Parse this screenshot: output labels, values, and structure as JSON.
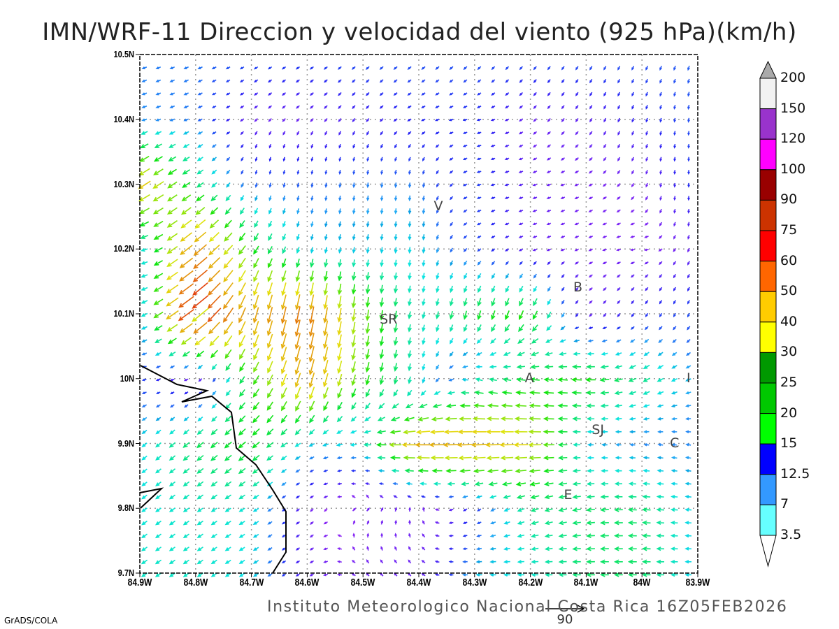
{
  "title": "IMN/WRF-11 Direccion y velocidad del viento (925 hPa)(km/h)",
  "footer": "Instituto Meteorologico Nacional Costa Rica 16Z05FEB2026",
  "credit": "GrADS/COLA",
  "reference_vector": {
    "label": "90",
    "speed": 90
  },
  "axes": {
    "lat_labels": [
      "10.5N",
      "10.4N",
      "10.3N",
      "10.2N",
      "10.1N",
      "10N",
      "9.9N",
      "9.8N",
      "9.7N"
    ],
    "lat_values": [
      10.5,
      10.4,
      10.3,
      10.2,
      10.1,
      10.0,
      9.9,
      9.8,
      9.7
    ],
    "lon_labels": [
      "84.9W",
      "84.8W",
      "84.7W",
      "84.6W",
      "84.5W",
      "84.4W",
      "84.3W",
      "84.2W",
      "84.1W",
      "84W",
      "83.9W"
    ],
    "lon_values": [
      -84.9,
      -84.8,
      -84.7,
      -84.6,
      -84.5,
      -84.4,
      -84.3,
      -84.2,
      -84.1,
      -84.0,
      -83.9
    ],
    "lat_range": [
      9.7,
      10.5
    ],
    "lon_range": [
      -84.9,
      -83.9
    ]
  },
  "cities": [
    {
      "label": "V",
      "lat": 10.265,
      "lon": -84.363
    },
    {
      "label": "B",
      "lat": 10.14,
      "lon": -84.113
    },
    {
      "label": "SR",
      "lat": 10.09,
      "lon": -84.46
    },
    {
      "label": "A",
      "lat": 10.0,
      "lon": -84.2
    },
    {
      "label": "I",
      "lat": 10.0,
      "lon": -83.91
    },
    {
      "label": "SJ",
      "lat": 9.92,
      "lon": -84.08
    },
    {
      "label": "C",
      "lat": 9.9,
      "lon": -83.94
    },
    {
      "label": "E",
      "lat": 9.82,
      "lon": -84.13
    }
  ],
  "colorbar": {
    "labels": [
      "200",
      "150",
      "120",
      "100",
      "90",
      "75",
      "60",
      "50",
      "40",
      "30",
      "25",
      "20",
      "15",
      "12.5",
      "7",
      "3.5"
    ],
    "colors": [
      "#f2f2f2",
      "#9933cc",
      "#ff00ff",
      "#990000",
      "#cc3300",
      "#ff0000",
      "#ff6600",
      "#ffcc00",
      "#ffff00",
      "#009900",
      "#00c800",
      "#00ff00",
      "#0000ff",
      "#3399ff",
      "#66ffff"
    ],
    "over_color": "#aaaaaa",
    "under_color": "#ffffff"
  },
  "wind_field": {
    "description_units": "km/h, u eastward / v northward, nodes every 0.1 deg",
    "lats": [
      10.5,
      10.4,
      10.3,
      10.2,
      10.1,
      10.0,
      9.9,
      9.8,
      9.7
    ],
    "lons": [
      -84.9,
      -84.8,
      -84.7,
      -84.6,
      -84.5,
      -84.4,
      -84.3,
      -84.2,
      -84.1,
      -84.0,
      -83.9
    ],
    "uv": [
      [
        [
          -9,
          -4
        ],
        [
          -9,
          -4
        ],
        [
          -8,
          -5
        ],
        [
          -7,
          -5
        ],
        [
          -7,
          -6
        ],
        [
          -7,
          -6
        ],
        [
          -6,
          -7
        ],
        [
          -6,
          -7
        ],
        [
          -5,
          -8
        ],
        [
          -4,
          -8
        ],
        [
          -3,
          -9
        ]
      ],
      [
        [
          -10,
          -3
        ],
        [
          -9,
          -4
        ],
        [
          -2,
          -2
        ],
        [
          -2,
          -2
        ],
        [
          -3,
          -4
        ],
        [
          -6,
          -3
        ],
        [
          -7,
          -2
        ],
        [
          -2,
          -2
        ],
        [
          -2,
          -3
        ],
        [
          -2,
          -6
        ],
        [
          -1,
          -9
        ]
      ],
      [
        [
          -28,
          -18
        ],
        [
          -15,
          -10
        ],
        [
          -2,
          -9
        ],
        [
          -1,
          -9
        ],
        [
          -1,
          -10
        ],
        [
          -1,
          -10
        ],
        [
          -8,
          -2
        ],
        [
          -3,
          -1
        ],
        [
          -2,
          -1
        ],
        [
          -1,
          -2
        ],
        [
          0,
          -8
        ]
      ],
      [
        [
          -12,
          -2
        ],
        [
          -30,
          -25
        ],
        [
          -12,
          -18
        ],
        [
          -3,
          -12
        ],
        [
          -2,
          -12
        ],
        [
          -1,
          -13
        ],
        [
          -7,
          -5
        ],
        [
          -3,
          -1
        ],
        [
          -2,
          -1
        ],
        [
          -2,
          0
        ],
        [
          -1,
          -3
        ]
      ],
      [
        [
          -10,
          -4
        ],
        [
          -40,
          -30
        ],
        [
          -10,
          -35
        ],
        [
          -8,
          -40
        ],
        [
          -3,
          -25
        ],
        [
          -3,
          -14
        ],
        [
          -5,
          -20
        ],
        [
          -10,
          -20
        ],
        [
          -2,
          -2
        ],
        [
          -4,
          -6
        ],
        [
          -4,
          -8
        ]
      ],
      [
        [
          -8,
          -2
        ],
        [
          -2,
          -1
        ],
        [
          -12,
          -18
        ],
        [
          -10,
          -35
        ],
        [
          -6,
          -22
        ],
        [
          -2,
          -14
        ],
        [
          -14,
          4
        ],
        [
          -20,
          2
        ],
        [
          -22,
          1
        ],
        [
          -15,
          -8
        ],
        [
          -10,
          -4
        ]
      ],
      [
        [
          -10,
          -8
        ],
        [
          -14,
          -12
        ],
        [
          -16,
          -14
        ],
        [
          -11,
          -6
        ],
        [
          -14,
          0
        ],
        [
          -36,
          0
        ],
        [
          -35,
          -1
        ],
        [
          -30,
          0
        ],
        [
          -12,
          0
        ],
        [
          -10,
          1
        ],
        [
          -10,
          2
        ]
      ],
      [
        [
          -11,
          -8
        ],
        [
          -12,
          -8
        ],
        [
          -12,
          -7
        ],
        [
          -2,
          -2
        ],
        [
          2,
          2
        ],
        [
          0,
          3
        ],
        [
          -6,
          -4
        ],
        [
          -16,
          -6
        ],
        [
          -18,
          -2
        ],
        [
          -18,
          1
        ],
        [
          -12,
          1
        ]
      ],
      [
        [
          -12,
          -8
        ],
        [
          -12,
          -8
        ],
        [
          -11,
          -7
        ],
        [
          -3,
          -2
        ],
        [
          -2,
          2
        ],
        [
          -2,
          2
        ],
        [
          -12,
          0
        ],
        [
          -14,
          0
        ],
        [
          -18,
          0
        ],
        [
          -18,
          0
        ],
        [
          -12,
          0
        ]
      ]
    ]
  }
}
